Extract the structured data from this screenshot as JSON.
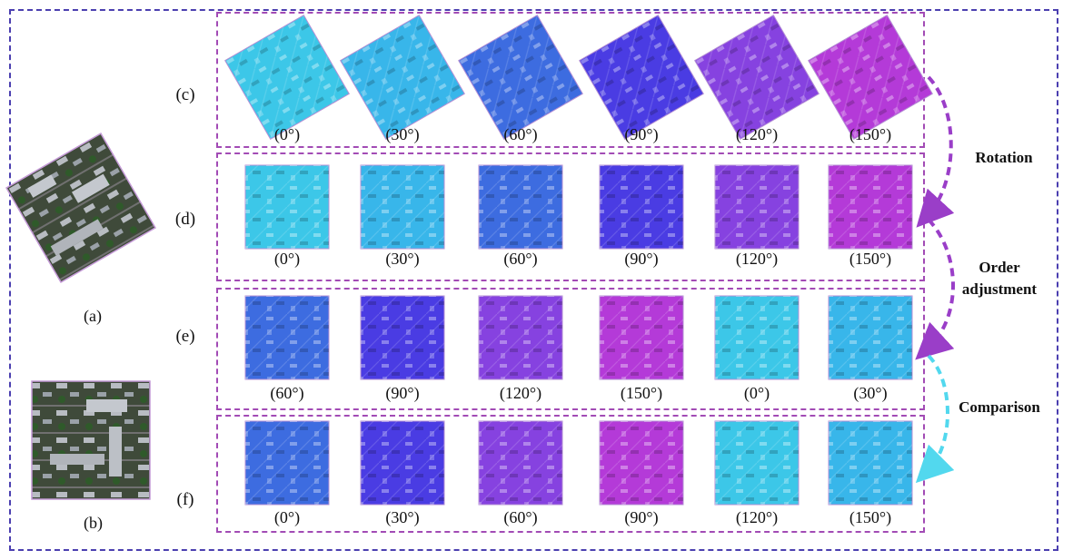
{
  "panels": {
    "a_label": "(a)",
    "b_label": "(b)"
  },
  "rows": [
    {
      "id": "c",
      "label": "(c)",
      "rotated": true,
      "angles": [
        "(0°)",
        "(30°)",
        "(60°)",
        "(90°)",
        "(120°)",
        "(150°)"
      ],
      "colors": [
        "#3cc7e8",
        "#38b6ea",
        "#3d6ce0",
        "#4a3ce3",
        "#8642e0",
        "#b43ad8"
      ]
    },
    {
      "id": "d",
      "label": "(d)",
      "rotated": false,
      "angles": [
        "(0°)",
        "(30°)",
        "(60°)",
        "(90°)",
        "(120°)",
        "(150°)"
      ],
      "colors": [
        "#3cc7e8",
        "#38b6ea",
        "#3d6ce0",
        "#4a3ce3",
        "#8642e0",
        "#b43ad8"
      ]
    },
    {
      "id": "e",
      "label": "(e)",
      "rotated": false,
      "angles": [
        "(60°)",
        "(90°)",
        "(120°)",
        "(150°)",
        "(0°)",
        "(30°)"
      ],
      "colors": [
        "#3d6ce0",
        "#4a3ce3",
        "#8642e0",
        "#b43ad8",
        "#3cc7e8",
        "#38b6ea"
      ]
    },
    {
      "id": "f",
      "label": "(f)",
      "rotated": false,
      "angles": [
        "(0°)",
        "(30°)",
        "(60°)",
        "(90°)",
        "(120°)",
        "(150°)"
      ],
      "colors": [
        "#3d6ce0",
        "#4a3ce3",
        "#8642e0",
        "#b43ad8",
        "#3cc7e8",
        "#38b6ea"
      ]
    }
  ],
  "annotations": {
    "rotation": "Rotation",
    "order_line1": "Order",
    "order_line2": "adjustment",
    "comparison": "Comparison"
  },
  "colors": {
    "outer_frame": "#4b3fb0",
    "row_frame": "#a24bb5",
    "arrow_purple": "#9a3ec8",
    "arrow_cyan": "#52d8ee"
  }
}
